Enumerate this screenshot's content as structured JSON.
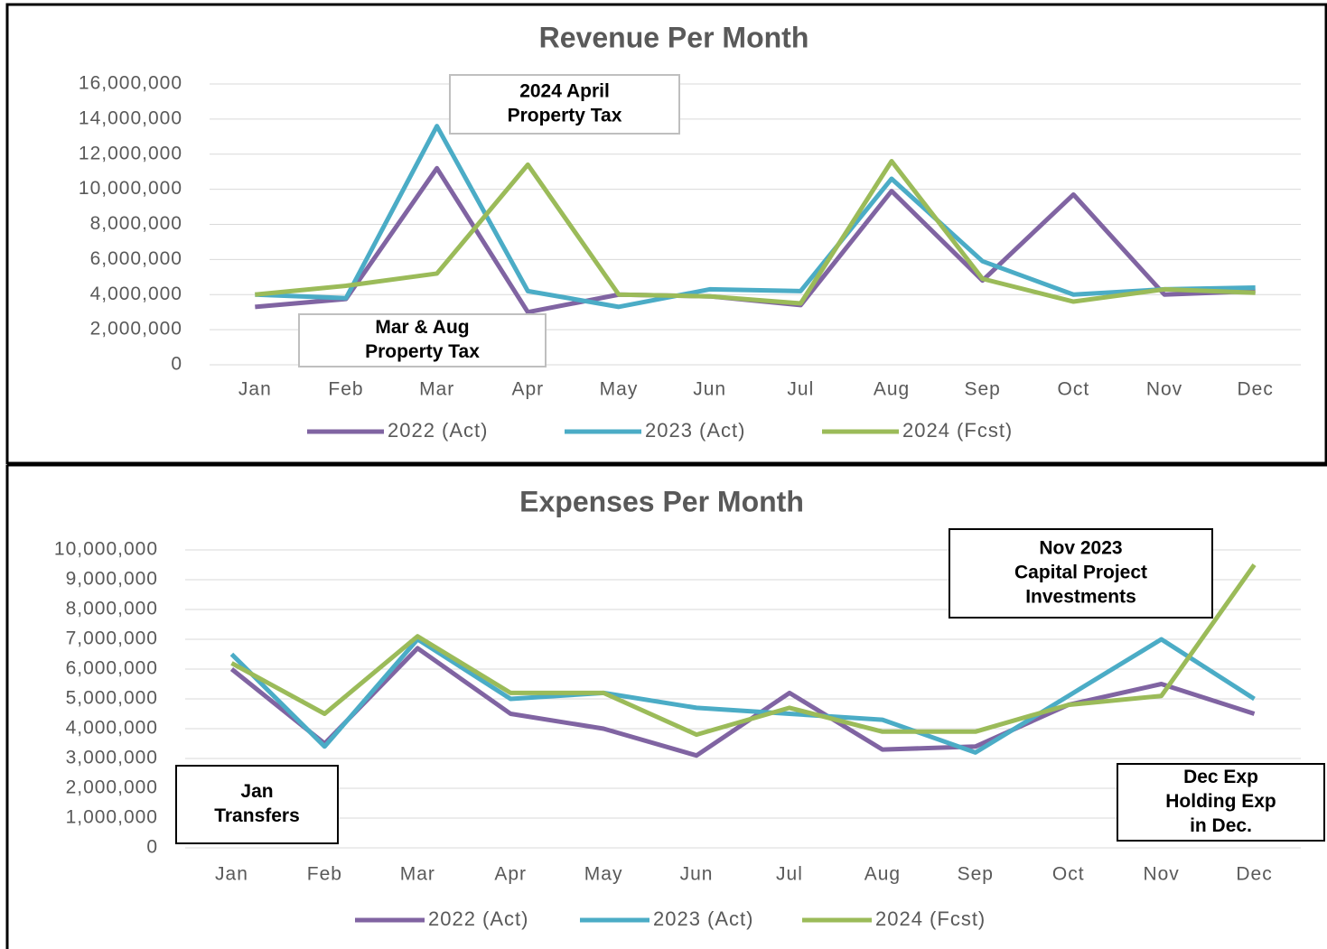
{
  "chart_data": [
    {
      "type": "line",
      "title": "Revenue Per Month",
      "categories": [
        "Jan",
        "Feb",
        "Mar",
        "Apr",
        "May",
        "Jun",
        "Jul",
        "Aug",
        "Sep",
        "Oct",
        "Nov",
        "Dec"
      ],
      "series": [
        {
          "name": "2022 (Act)",
          "color": "#8064a2",
          "values": [
            3300000,
            3750000,
            11200000,
            3000000,
            4000000,
            3900000,
            3400000,
            9900000,
            4800000,
            9700000,
            4000000,
            4200000
          ]
        },
        {
          "name": "2023 (Act)",
          "color": "#4bacc6",
          "values": [
            4000000,
            3800000,
            13600000,
            4200000,
            3300000,
            4300000,
            4200000,
            10600000,
            5900000,
            4000000,
            4300000,
            4400000
          ]
        },
        {
          "name": "2024 (Fcst)",
          "color": "#9bbb59",
          "values": [
            4000000,
            4500000,
            5200000,
            11400000,
            4000000,
            3900000,
            3500000,
            11600000,
            4900000,
            3600000,
            4300000,
            4100000
          ]
        }
      ],
      "ylim": [
        0,
        16000000
      ],
      "yticks": [
        0,
        {
          "value": 2000000,
          "label": "2,000,000"
        },
        {
          "value": 4000000,
          "label": "4,000,000"
        },
        {
          "value": 6000000,
          "label": "6,000,000"
        },
        {
          "value": 8000000,
          "label": "8,000,000"
        },
        {
          "value": 10000000,
          "label": "10,000,000"
        },
        {
          "value": 12000000,
          "label": "12,000,000"
        },
        {
          "value": 14000000,
          "label": "14,000,000"
        },
        {
          "value": 16000000,
          "label": "16,000,000"
        }
      ],
      "grid": true,
      "legend": "bottom",
      "annotations": [
        [
          "2024 April",
          "Property Tax"
        ],
        [
          "Mar & Aug",
          "Property Tax"
        ]
      ]
    },
    {
      "type": "line",
      "title": "Expenses Per Month",
      "categories": [
        "Jan",
        "Feb",
        "Mar",
        "Apr",
        "May",
        "Jun",
        "Jul",
        "Aug",
        "Sep",
        "Oct",
        "Nov",
        "Dec"
      ],
      "series": [
        {
          "name": "2022 (Act)",
          "color": "#8064a2",
          "values": [
            6000000,
            3500000,
            6700000,
            4500000,
            4000000,
            3100000,
            5200000,
            3300000,
            3400000,
            4800000,
            5500000,
            4500000
          ]
        },
        {
          "name": "2023 (Act)",
          "color": "#4bacc6",
          "values": [
            6500000,
            3400000,
            7000000,
            5000000,
            5200000,
            4700000,
            4500000,
            4300000,
            3200000,
            5100000,
            7000000,
            5000000
          ]
        },
        {
          "name": "2024 (Fcst)",
          "color": "#9bbb59",
          "values": [
            6200000,
            4500000,
            7100000,
            5200000,
            5200000,
            3800000,
            4700000,
            3900000,
            3900000,
            4800000,
            5100000,
            9500000
          ]
        }
      ],
      "ylim": [
        0,
        10000000
      ],
      "yticks": [
        0,
        {
          "value": 1000000,
          "label": "1,000,000"
        },
        {
          "value": 2000000,
          "label": "2,000,000"
        },
        {
          "value": 3000000,
          "label": "3,000,000"
        },
        {
          "value": 4000000,
          "label": "4,000,000"
        },
        {
          "value": 5000000,
          "label": "5,000,000"
        },
        {
          "value": 6000000,
          "label": "6,000,000"
        },
        {
          "value": 7000000,
          "label": "7,000,000"
        },
        {
          "value": 8000000,
          "label": "8,000,000"
        },
        {
          "value": 9000000,
          "label": "9,000,000"
        },
        {
          "value": 10000000,
          "label": "10,000,000"
        }
      ],
      "grid": true,
      "legend": "bottom",
      "annotations": [
        [
          "Nov 2023",
          "Capital Project",
          "Investments"
        ],
        [
          "Jan",
          "Transfers"
        ],
        [
          "Dec Exp",
          "Holding Exp",
          "in Dec."
        ]
      ]
    }
  ]
}
